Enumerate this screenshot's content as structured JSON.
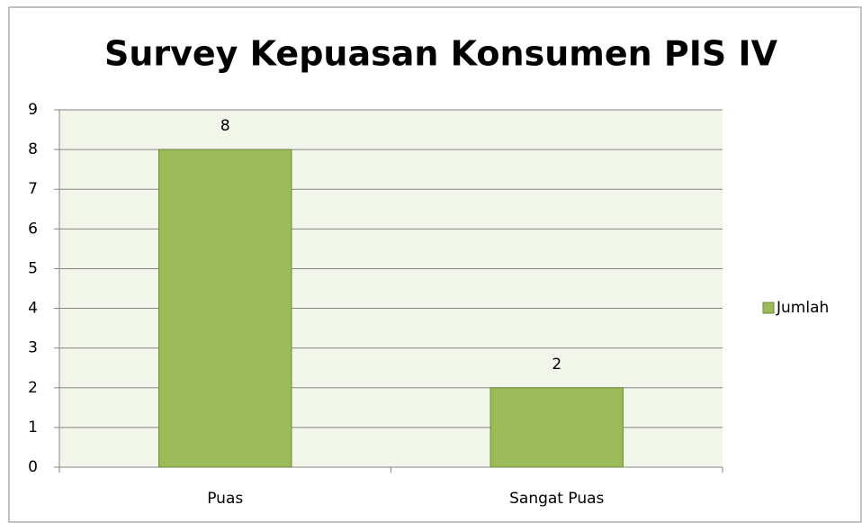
{
  "chart_data": {
    "type": "bar",
    "title": "Survey Kepuasan Konsumen PIS IV",
    "categories": [
      "Puas",
      "Sangat Puas"
    ],
    "series": [
      {
        "name": "Jumlah",
        "color": "#9bbb59",
        "values": [
          8,
          2
        ]
      }
    ],
    "ylim": [
      0,
      9
    ],
    "yticks": [
      0,
      1,
      2,
      3,
      4,
      5,
      6,
      7,
      8,
      9
    ],
    "grid": true,
    "legend": "right"
  }
}
